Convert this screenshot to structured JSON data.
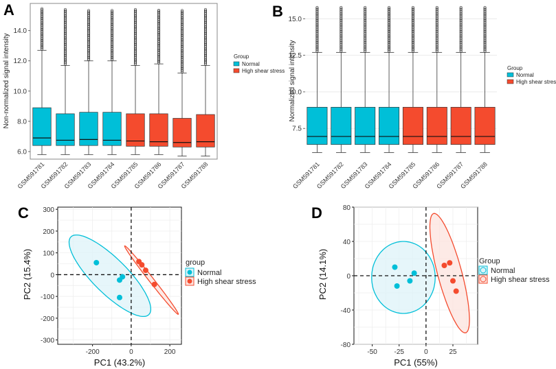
{
  "colors": {
    "normal": "#00BFD8",
    "high": "#F44B2E",
    "normal_fill": "#DDF3F8",
    "high_fill": "#FCE3DE"
  },
  "panels": {
    "A": {
      "letter": "A"
    },
    "B": {
      "letter": "B"
    },
    "C": {
      "letter": "C"
    },
    "D": {
      "letter": "D"
    }
  },
  "chart_data": [
    {
      "id": "A",
      "type": "box",
      "ylabel": "Non-normalized signal intensity",
      "ylim": [
        5.5,
        15.8
      ],
      "yticks": [
        "6.0",
        "8.0",
        "10.0",
        "12.0",
        "14.0"
      ],
      "ytick_values": [
        6,
        8,
        10,
        12,
        14
      ],
      "legend": {
        "title": "Group",
        "items": [
          "Normal",
          "High shear stress"
        ]
      },
      "categories": [
        "GSM591781",
        "GSM591782",
        "GSM591783",
        "GSM591784",
        "GSM591785",
        "GSM591786",
        "GSM591787",
        "GSM591788"
      ],
      "groups": [
        "normal",
        "normal",
        "normal",
        "normal",
        "high",
        "high",
        "high",
        "high"
      ],
      "boxes": [
        {
          "min": 5.8,
          "q1": 6.4,
          "median": 6.9,
          "q3": 8.9,
          "upper_whisker": 12.7,
          "max_outlier": 15.5
        },
        {
          "min": 5.8,
          "q1": 6.4,
          "median": 6.75,
          "q3": 8.5,
          "upper_whisker": 11.7,
          "max_outlier": 15.4
        },
        {
          "min": 5.8,
          "q1": 6.4,
          "median": 6.8,
          "q3": 8.6,
          "upper_whisker": 12.0,
          "max_outlier": 15.4
        },
        {
          "min": 5.8,
          "q1": 6.4,
          "median": 6.75,
          "q3": 8.6,
          "upper_whisker": 12.0,
          "max_outlier": 15.4
        },
        {
          "min": 5.8,
          "q1": 6.35,
          "median": 6.7,
          "q3": 8.5,
          "upper_whisker": 11.7,
          "max_outlier": 15.4
        },
        {
          "min": 5.8,
          "q1": 6.35,
          "median": 6.65,
          "q3": 8.5,
          "upper_whisker": 11.8,
          "max_outlier": 15.4
        },
        {
          "min": 5.7,
          "q1": 6.3,
          "median": 6.6,
          "q3": 8.2,
          "upper_whisker": 11.2,
          "max_outlier": 15.4
        },
        {
          "min": 5.7,
          "q1": 6.3,
          "median": 6.65,
          "q3": 8.45,
          "upper_whisker": 11.7,
          "max_outlier": 15.4
        }
      ]
    },
    {
      "id": "B",
      "type": "box",
      "ylabel": "Normalized signal intensity",
      "ylim": [
        5.4,
        16.0
      ],
      "yticks": [
        "7.5",
        "10.0",
        "12.5",
        "15.0"
      ],
      "ytick_values": [
        7.5,
        10,
        12.5,
        15
      ],
      "legend": {
        "title": "Group",
        "items": [
          "Normal",
          "High shear stress"
        ]
      },
      "categories": [
        "GSM591781",
        "GSM591782",
        "GSM591783",
        "GSM591784",
        "GSM591785",
        "GSM591786",
        "GSM591787",
        "GSM591788"
      ],
      "groups": [
        "normal",
        "normal",
        "normal",
        "normal",
        "high",
        "high",
        "high",
        "high"
      ],
      "boxes": [
        {
          "min": 5.85,
          "q1": 6.4,
          "median": 6.95,
          "q3": 8.95,
          "upper_whisker": 12.7,
          "max_outlier": 15.8
        },
        {
          "min": 5.85,
          "q1": 6.4,
          "median": 6.95,
          "q3": 8.95,
          "upper_whisker": 12.7,
          "max_outlier": 15.8
        },
        {
          "min": 5.85,
          "q1": 6.4,
          "median": 6.95,
          "q3": 8.95,
          "upper_whisker": 12.7,
          "max_outlier": 15.8
        },
        {
          "min": 5.85,
          "q1": 6.4,
          "median": 6.95,
          "q3": 8.95,
          "upper_whisker": 12.7,
          "max_outlier": 15.8
        },
        {
          "min": 5.85,
          "q1": 6.4,
          "median": 6.95,
          "q3": 8.95,
          "upper_whisker": 12.7,
          "max_outlier": 15.8
        },
        {
          "min": 5.85,
          "q1": 6.4,
          "median": 6.95,
          "q3": 8.95,
          "upper_whisker": 12.7,
          "max_outlier": 15.8
        },
        {
          "min": 5.85,
          "q1": 6.4,
          "median": 6.95,
          "q3": 8.95,
          "upper_whisker": 12.7,
          "max_outlier": 15.8
        },
        {
          "min": 5.85,
          "q1": 6.4,
          "median": 6.95,
          "q3": 8.95,
          "upper_whisker": 12.7,
          "max_outlier": 15.8
        }
      ]
    },
    {
      "id": "C",
      "type": "scatter",
      "xlabel": "PC1 (43.2%)",
      "ylabel": "PC2 (15.4%)",
      "xlim": [
        -380,
        260
      ],
      "ylim": [
        -320,
        310
      ],
      "xticks": [
        "-200",
        "0",
        "200"
      ],
      "xtick_values": [
        -200,
        0,
        200
      ],
      "yticks": [
        "-300",
        "-200",
        "-100",
        "0",
        "100",
        "200",
        "300"
      ],
      "ytick_values": [
        -300,
        -200,
        -100,
        0,
        100,
        200,
        300
      ],
      "legend": {
        "title": "group",
        "items": [
          "Normal",
          "High shear stress"
        ]
      },
      "series": [
        {
          "name": "Normal",
          "group": "normal",
          "points": [
            [
              -180,
              55
            ],
            [
              -60,
              -25
            ],
            [
              -45,
              -10
            ],
            [
              -60,
              -105
            ]
          ],
          "ellipse": {
            "cx": -110,
            "cy": -5,
            "rx": 285,
            "ry": 90,
            "angle_deg": -45
          }
        },
        {
          "name": "High shear stress",
          "group": "high",
          "points": [
            [
              40,
              60
            ],
            [
              55,
              45
            ],
            [
              75,
              20
            ],
            [
              120,
              -45
            ]
          ],
          "ellipse": {
            "cx": 105,
            "cy": -25,
            "rx": 225,
            "ry": 12,
            "angle_deg": -52
          }
        }
      ]
    },
    {
      "id": "D",
      "type": "scatter",
      "xlabel": "PC1 (55%)",
      "ylabel": "PC2 (14.1%)",
      "xlim": [
        -67,
        48
      ],
      "ylim": [
        -80,
        80
      ],
      "xticks": [
        "-50",
        "-25",
        "0",
        "25"
      ],
      "xtick_values": [
        -50,
        -25,
        0,
        25
      ],
      "yticks": [
        "-80",
        "-40",
        "0",
        "40",
        "80"
      ],
      "ytick_values": [
        -80,
        -40,
        0,
        40,
        80
      ],
      "legend": {
        "title": "Group",
        "items": [
          "Normal",
          "High shear stress"
        ]
      },
      "series": [
        {
          "name": "Normal",
          "group": "normal",
          "points": [
            [
              -29,
              10
            ],
            [
              -27,
              -12
            ],
            [
              -15,
              -6
            ],
            [
              -11,
              3
            ]
          ],
          "ellipse": {
            "cx": -21,
            "cy": -2,
            "rx": 37,
            "ry": 42,
            "angle_deg": 0
          }
        },
        {
          "name": "High shear stress",
          "group": "high",
          "points": [
            [
              17,
              12
            ],
            [
              22,
              15
            ],
            [
              25,
              -6
            ],
            [
              28,
              -18
            ]
          ],
          "ellipse": {
            "cx": 22,
            "cy": 3,
            "rx": 14,
            "ry": 72,
            "angle_deg": 15
          }
        }
      ]
    }
  ]
}
